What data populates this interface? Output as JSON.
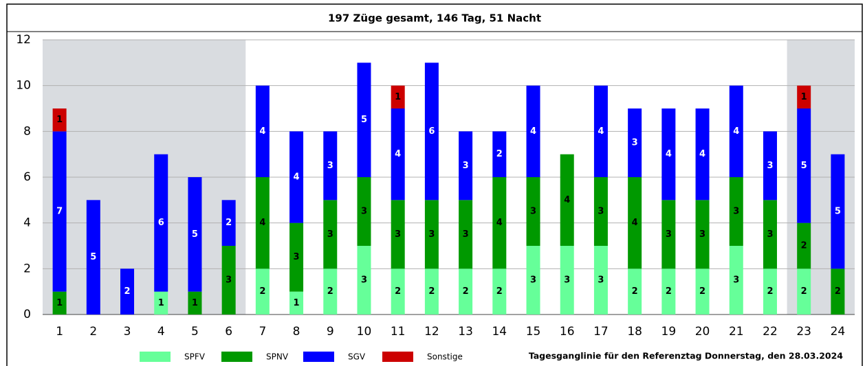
{
  "chart_data": {
    "type": "stacked_bar",
    "title": "197 Züge gesamt, 146 Tag, 51 Nacht",
    "note": "Tagesganglinie  für den Referenztag Donnerstag, den 28.03.2024",
    "categories": [
      "1",
      "2",
      "3",
      "4",
      "5",
      "6",
      "7",
      "8",
      "9",
      "10",
      "11",
      "12",
      "13",
      "14",
      "15",
      "16",
      "17",
      "18",
      "19",
      "20",
      "21",
      "22",
      "23",
      "24"
    ],
    "series": [
      {
        "name": "SPFV",
        "color": "#66ff99",
        "values": [
          0,
          0,
          0,
          1,
          0,
          0,
          2,
          1,
          2,
          3,
          2,
          2,
          2,
          2,
          3,
          3,
          3,
          2,
          2,
          2,
          3,
          2,
          2,
          0
        ]
      },
      {
        "name": "SPNV",
        "color": "#009900",
        "values": [
          1,
          0,
          0,
          0,
          1,
          3,
          4,
          3,
          3,
          3,
          3,
          3,
          3,
          4,
          3,
          4,
          3,
          4,
          3,
          3,
          3,
          3,
          2,
          2
        ]
      },
      {
        "name": "SGV",
        "color": "#0000ff",
        "values": [
          7,
          5,
          2,
          6,
          5,
          2,
          4,
          4,
          3,
          5,
          4,
          6,
          3,
          2,
          4,
          0,
          4,
          3,
          4,
          4,
          4,
          3,
          5,
          5
        ]
      },
      {
        "name": "Sonstige",
        "color": "#cc0000",
        "values": [
          1,
          0,
          0,
          0,
          0,
          0,
          0,
          0,
          0,
          0,
          1,
          0,
          0,
          0,
          0,
          0,
          0,
          0,
          0,
          0,
          0,
          0,
          1,
          0
        ]
      }
    ],
    "ylim": [
      0,
      12
    ],
    "yticks": [
      0,
      2,
      4,
      6,
      8,
      10,
      12
    ],
    "grid": true
  }
}
